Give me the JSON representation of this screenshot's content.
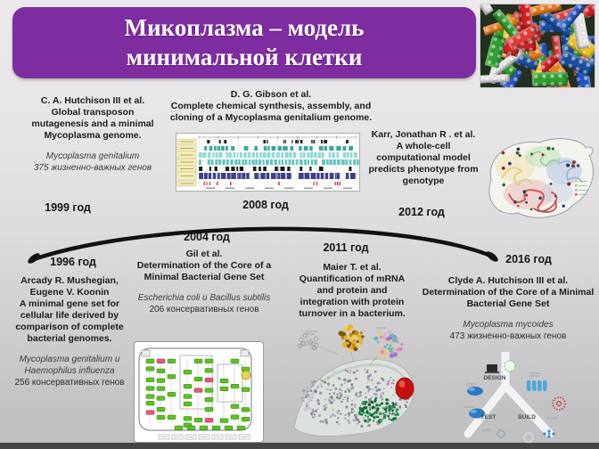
{
  "slide_title": {
    "line1": "Микоплазма – модель",
    "line2": "минимальной клетки"
  },
  "entries": {
    "y1999": {
      "year": "1999 год",
      "authors": "C. A. Hutchison III et al.",
      "work": "Global transposon mutagenesis and a minimal Mycoplasma genome.",
      "organism": "Mycoplasma genitalium",
      "genes": "375 жизненно-важных генов"
    },
    "y2008": {
      "year": "2008 год",
      "authors": "D. G. Gibson et al.",
      "work": "Complete chemical synthesis, assembly, and cloning of a Mycoplasma genitalium genome."
    },
    "y2012": {
      "year": "2012 год",
      "authors": "Karr, Jonathan R . et al.",
      "work": "A whole-cell computational model predicts phenotype from genotype"
    },
    "y1996": {
      "year": "1996 год",
      "authors": "Arcady R. Mushegian, Eugene V. Koonin",
      "work": "A minimal gene set for cellular life derived by comparison of complete bacterial genomes.",
      "organism": "Mycoplasma genitalium и Haemophilus influenza",
      "genes": "256  консервативных генов"
    },
    "y2004": {
      "year": "2004 год",
      "authors": "Gil et al.",
      "work": "Determination of the Core of a Minimal Bacterial Gene Set",
      "organism": "Escherichia coli и Bacillus subtilis",
      "genes": "206 консервативных генов"
    },
    "y2011": {
      "year": "2011 год",
      "authors": "Maier T. et al.",
      "work": "Quantification of mRNA and protein and integration with protein turnover in a bacterium."
    },
    "y2016": {
      "year": "2016 год",
      "authors": "Clyde A. Hutchison III et al.",
      "work": "Determination of the Core of a Minimal Bacterial Gene Set",
      "organism": "Mycoplasma mycoides",
      "genes": "473 жизненно-важных генов"
    }
  },
  "dbt_labels": {
    "design": "DESIGN",
    "test": "TEST",
    "build": "BUILD"
  },
  "colors": {
    "title_bg": "#7d2da0",
    "text": "#1d1d1d",
    "arc": "#121212"
  }
}
